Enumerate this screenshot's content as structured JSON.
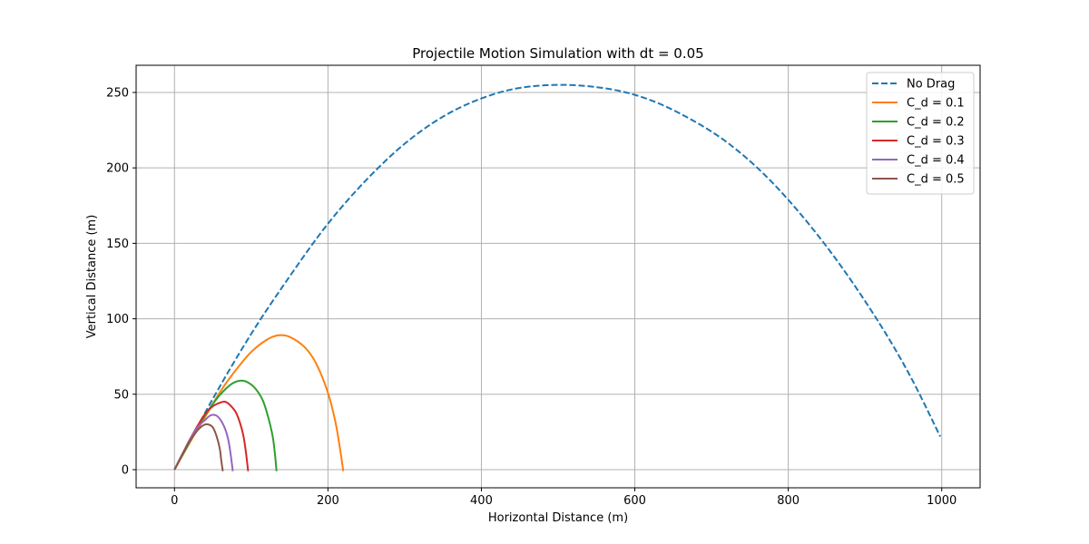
{
  "chart_data": {
    "type": "line",
    "title": "Projectile Motion Simulation with dt = 0.05",
    "xlabel": "Horizontal Distance (m)",
    "ylabel": "Vertical Distance (m)",
    "xlim": [
      -50,
      1050
    ],
    "ylim": [
      -12,
      268
    ],
    "xticks": [
      0,
      200,
      400,
      600,
      800,
      1000
    ],
    "yticks": [
      0,
      50,
      100,
      150,
      200,
      250
    ],
    "grid": true,
    "legend_position": "upper right",
    "series": [
      {
        "name": "No Drag",
        "color": "#1f77b4",
        "style": "dashed",
        "points": [
          [
            0,
            0
          ],
          [
            50,
            47
          ],
          [
            100,
            90
          ],
          [
            150,
            128
          ],
          [
            200,
            163
          ],
          [
            250,
            192
          ],
          [
            300,
            216
          ],
          [
            350,
            234
          ],
          [
            400,
            246
          ],
          [
            450,
            253
          ],
          [
            510,
            255
          ],
          [
            570,
            252
          ],
          [
            620,
            245
          ],
          [
            670,
            233
          ],
          [
            720,
            217
          ],
          [
            770,
            195
          ],
          [
            820,
            167
          ],
          [
            870,
            134
          ],
          [
            920,
            96
          ],
          [
            960,
            61
          ],
          [
            998,
            22
          ]
        ]
      },
      {
        "name": "C_d = 0.1",
        "color": "#ff7f0e",
        "style": "solid",
        "points": [
          [
            0,
            0
          ],
          [
            20,
            18
          ],
          [
            40,
            35
          ],
          [
            60,
            52
          ],
          [
            80,
            66
          ],
          [
            100,
            78
          ],
          [
            120,
            86
          ],
          [
            135,
            89
          ],
          [
            150,
            88
          ],
          [
            170,
            81
          ],
          [
            185,
            70
          ],
          [
            200,
            51
          ],
          [
            210,
            31
          ],
          [
            216,
            13
          ],
          [
            220,
            -1
          ]
        ]
      },
      {
        "name": "C_d = 0.2",
        "color": "#2ca02c",
        "style": "solid",
        "points": [
          [
            0,
            0
          ],
          [
            15,
            14
          ],
          [
            30,
            28
          ],
          [
            45,
            40
          ],
          [
            60,
            50
          ],
          [
            75,
            57
          ],
          [
            86,
            59
          ],
          [
            95,
            58
          ],
          [
            105,
            54
          ],
          [
            115,
            46
          ],
          [
            122,
            35
          ],
          [
            128,
            22
          ],
          [
            131,
            10
          ],
          [
            133,
            -1
          ]
        ]
      },
      {
        "name": "C_d = 0.3",
        "color": "#d62728",
        "style": "solid",
        "points": [
          [
            0,
            0
          ],
          [
            10,
            10
          ],
          [
            20,
            20
          ],
          [
            30,
            29
          ],
          [
            40,
            37
          ],
          [
            50,
            42
          ],
          [
            60,
            44.5
          ],
          [
            66,
            45
          ],
          [
            72,
            43
          ],
          [
            80,
            38
          ],
          [
            86,
            30
          ],
          [
            90,
            22
          ],
          [
            93,
            12
          ],
          [
            96,
            -1
          ]
        ]
      },
      {
        "name": "C_d = 0.4",
        "color": "#9467bd",
        "style": "solid",
        "points": [
          [
            0,
            0
          ],
          [
            10,
            10
          ],
          [
            20,
            20
          ],
          [
            30,
            28
          ],
          [
            40,
            33
          ],
          [
            47,
            36
          ],
          [
            54,
            36
          ],
          [
            60,
            33
          ],
          [
            66,
            27
          ],
          [
            70,
            20
          ],
          [
            73,
            11
          ],
          [
            76,
            -1
          ]
        ]
      },
      {
        "name": "C_d = 0.5",
        "color": "#8c564b",
        "style": "solid",
        "points": [
          [
            0,
            0
          ],
          [
            10,
            10
          ],
          [
            20,
            19
          ],
          [
            30,
            26
          ],
          [
            38,
            29.5
          ],
          [
            44,
            30
          ],
          [
            50,
            28
          ],
          [
            55,
            22
          ],
          [
            59,
            14
          ],
          [
            61,
            6
          ],
          [
            63,
            -1
          ]
        ]
      }
    ]
  }
}
